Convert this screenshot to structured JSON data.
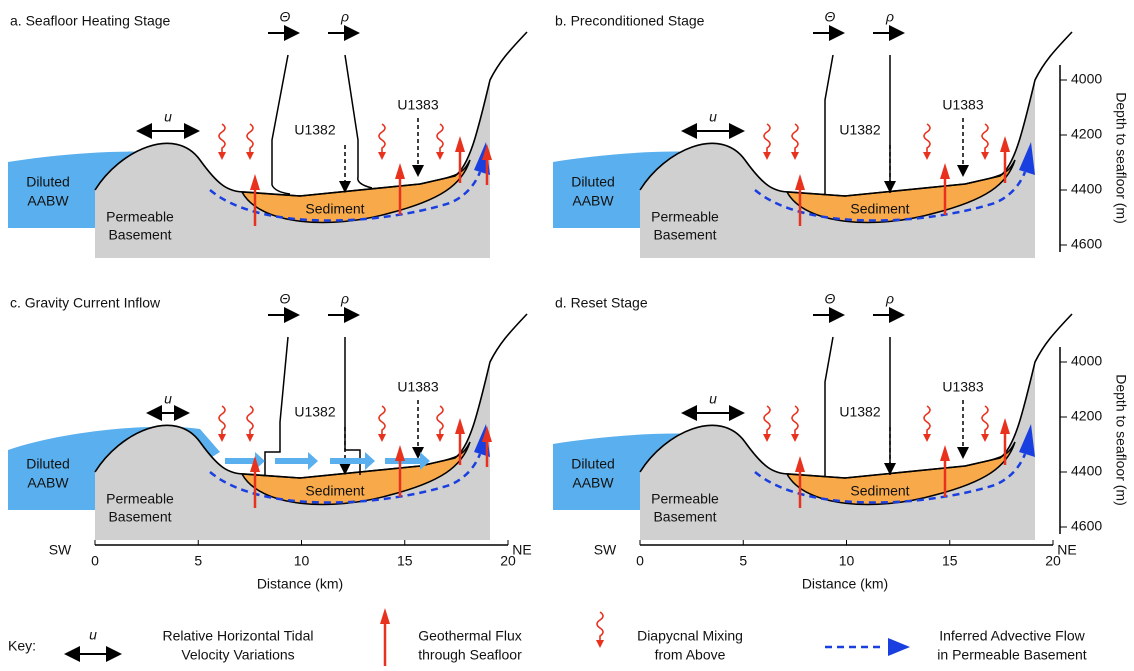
{
  "panels": [
    {
      "title": "a. Seafloor Heating Stage"
    },
    {
      "title": "b. Preconditioned Stage"
    },
    {
      "title": "c. Gravity Current Inflow"
    },
    {
      "title": "d. Reset Stage"
    }
  ],
  "labels": {
    "theta": "Θ",
    "rho": "ρ",
    "u": "u",
    "site1": "U1382",
    "site2": "U1383",
    "water": [
      "Diluted",
      "AABW"
    ],
    "basement": [
      "Permeable",
      "Basement"
    ],
    "sediment": "Sediment"
  },
  "x_axis": {
    "left": "SW",
    "right": "NE",
    "ticks": [
      0,
      5,
      10,
      15,
      20
    ],
    "label": "Distance (km)"
  },
  "depth_axis": {
    "label": "Depth to seafloor (m)",
    "ticks": [
      4000,
      4200,
      4400,
      4600
    ]
  },
  "key": {
    "title": "Key:",
    "symbol": "u",
    "items": [
      [
        "Relative Horizontal Tidal",
        "Velocity Variations"
      ],
      [
        "Geothermal Flux",
        "through Seafloor"
      ],
      [
        "Diapycnal Mixing",
        "from Above"
      ],
      [
        "Inferred Advective Flow",
        "in Permeable Basement"
      ]
    ]
  }
}
